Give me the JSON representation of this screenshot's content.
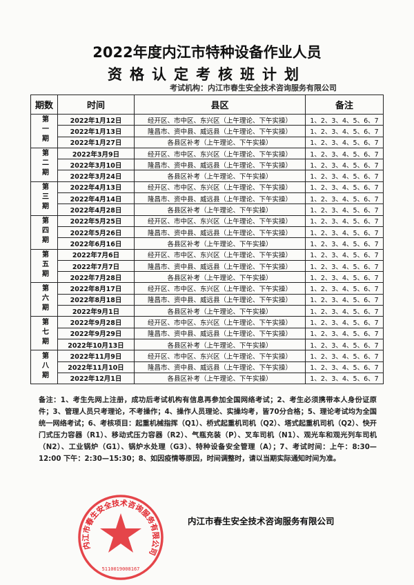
{
  "title_line1": "2022年度内江市特种设备作业人员",
  "title_line2": "资格认定考核班计划",
  "organizer": "考试机构：内江市春生安全技术咨询服务有限公司",
  "table": {
    "headers": [
      "期数",
      "时间",
      "县区",
      "备注"
    ],
    "periods": [
      {
        "label": "第一期",
        "rows": [
          {
            "date": "2022年1月12日",
            "area": "经开区、市中区、东兴区（上午理论、下午实操）",
            "note": "1、2、3、4、5、6、7"
          },
          {
            "date": "2022年1月13日",
            "area": "隆昌市、资中县、威远县（上午理论、下午实操）",
            "note": "1、2、3、4、5、6、7"
          },
          {
            "date": "2022年1月27日",
            "area": "各县区补考（上午理论、下午实操）",
            "note": "1、2、3、4、5、6、7"
          }
        ]
      },
      {
        "label": "第二期",
        "rows": [
          {
            "date": "2022年3月9日",
            "area": "经开区、市中区、东兴区（上午理论、下午实操）",
            "note": "1、2、3、4、5、6、7"
          },
          {
            "date": "2022年3月10日",
            "area": "隆昌市、资中县、威远县（上午理论、下午实操）",
            "note": "1、2、3、4、5、6、7"
          },
          {
            "date": "2022年3月24日",
            "area": "各县区补考（上午理论、下午实操）",
            "note": "1、2、3、4、5、6、7"
          }
        ]
      },
      {
        "label": "第三期",
        "rows": [
          {
            "date": "2022年4月13日",
            "area": "经开区、市中区、东兴区（上午理论、下午实操）",
            "note": "1、2、3、4、5、6、7"
          },
          {
            "date": "2022年4月14日",
            "area": "隆昌市、资中县、威远县（上午理论、下午实操）",
            "note": "1、2、3、4、5、6、7"
          },
          {
            "date": "2022年4月28日",
            "area": "各县区补考（上午理论、下午实操）",
            "note": "1、2、3、4、5、6、7"
          }
        ]
      },
      {
        "label": "第四期",
        "rows": [
          {
            "date": "2022年5月25日",
            "area": "经开区、市中区、东兴区（上午理论、下午实操）",
            "note": "1、2、3、4、5、6、7"
          },
          {
            "date": "2022年5月26日",
            "area": "隆昌市、资中县、威远县（上午理论、下午实操）",
            "note": "1、2、3、4、5、6、7"
          },
          {
            "date": "2022年6月16日",
            "area": "各县区补考（上午理论、下午实操）",
            "note": "1、2、3、4、5、6、7"
          }
        ]
      },
      {
        "label": "第五期",
        "rows": [
          {
            "date": "2022年7月6日",
            "area": "经开区、市中区、东兴区（上午理论、下午实操）",
            "note": "1、2、3、4、5、6、7"
          },
          {
            "date": "2022年7月7日",
            "area": "隆昌市、资中县、威远县（上午理论、下午实操）",
            "note": "1、2、3、4、5、6、7"
          },
          {
            "date": "2022年7月28日",
            "area": "各县区补考（上午理论、下午实操）",
            "note": "1、2、3、4、5、6、7"
          }
        ]
      },
      {
        "label": "第六期",
        "rows": [
          {
            "date": "2022年8月17日",
            "area": "经开区、市中区、东兴区（上午理论、下午实操）",
            "note": "1、2、3、4、5、6、7"
          },
          {
            "date": "2022年8月18日",
            "area": "隆昌市、资中县、威远县（上午理论、下午实操）",
            "note": "1、2、3、4、5、6、7"
          },
          {
            "date": "2022年9月1日",
            "area": "各县区补考（上午理论、下午实操）",
            "note": "1、2、3、4、5、6、7"
          }
        ]
      },
      {
        "label": "第七期",
        "rows": [
          {
            "date": "2022年9月28日",
            "area": "经开区、市中区、东兴区（上午理论、下午实操）",
            "note": "1、2、3、4、5、6、7"
          },
          {
            "date": "2022年9月29日",
            "area": "隆昌市、资中县、威远县（上午理论、下午实操）",
            "note": "1、2、3、4、5、6、7"
          },
          {
            "date": "2022年10月13日",
            "area": "各县区补考（上午理论、下午实操）",
            "note": "1、2、3、4、5、6、7"
          }
        ]
      },
      {
        "label": "第八期",
        "rows": [
          {
            "date": "2022年11月9日",
            "area": "经开区、市中区、东兴区（上午理论、下午实操）",
            "note": "1、2、3、4、5、6、7"
          },
          {
            "date": "2022年11月10日",
            "area": "隆昌市、资中县、威远县（上午理论、下午实操）",
            "note": "1、2、3、4、5、6、7"
          },
          {
            "date": "2022年12月1日",
            "area": "各县区补考（上午理论、下午实操）",
            "note": "1、2、3、4、5、6、7"
          }
        ]
      }
    ]
  },
  "notes": "备注：1、考生先网上注册，成功后考试机构有信息再参加全国网络考试；2、考生必须携带本人身份证原件；3、管理人员只考理论，不考操作；4、操作人员理论、实操均考，皆70分合格；5、理论考试均为全国统一网络考试；6、考核项目：起重机械指挥（Q1）、桥式起重机司机（Q2）、塔式起重机司机（Q2）、快开门式压力容器（R1）、移动式压力容器（R2）、气瓶充装（P）、叉车司机（N1）、观光车和观光列车司机（N2）、工业锅炉（G1）、锅炉水处理（G3）、特种设备安全管理（A）；7、考试时间：上午：8:30—12:00 下午：2:30—15:30；8、如因疫情等原因，时间调整时，请以当期实际通知时间为准。",
  "signature_company": "内江市春生安全技术咨询服务有限公司",
  "stamp": {
    "text": "内江市春生安全技术咨询服务有限公司",
    "number": "5110019008167",
    "color": "#e0242b"
  }
}
